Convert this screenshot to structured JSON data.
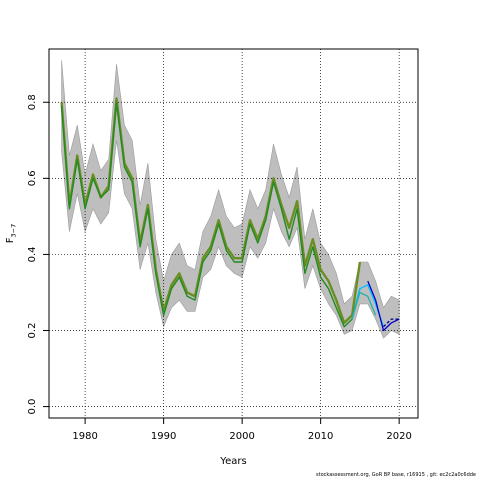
{
  "chart_data": {
    "type": "line",
    "xlabel": "Years",
    "ylabel_main": "F",
    "ylabel_sub": "3−7",
    "xlim": [
      1975.4,
      2022.4
    ],
    "ylim": [
      -0.03,
      0.94
    ],
    "xticks": [
      1980,
      1990,
      2000,
      2010,
      2020
    ],
    "yticks": [
      0.0,
      0.2,
      0.4,
      0.6,
      0.8
    ],
    "grid": true,
    "colors": {
      "band": "#bebebe",
      "base": "#6b8e23",
      "overlay": "#228b22",
      "retro1": "#00bfff",
      "retro2": "#20b2aa",
      "retro3": "#0000cd",
      "retro4": "#00008b"
    },
    "x": [
      1977,
      1978,
      1979,
      1980,
      1981,
      1982,
      1983,
      1984,
      1985,
      1986,
      1987,
      1988,
      1989,
      1990,
      1991,
      1992,
      1993,
      1994,
      1995,
      1996,
      1997,
      1998,
      1999,
      2000,
      2001,
      2002,
      2003,
      2004,
      2005,
      2006,
      2007,
      2008,
      2009,
      2010,
      2011,
      2012,
      2013,
      2014,
      2015,
      2016,
      2017,
      2018,
      2019,
      2020
    ],
    "band_upper": [
      0.91,
      0.66,
      0.74,
      0.61,
      0.69,
      0.62,
      0.65,
      0.9,
      0.74,
      0.7,
      0.53,
      0.64,
      0.44,
      0.33,
      0.4,
      0.43,
      0.37,
      0.36,
      0.46,
      0.5,
      0.57,
      0.5,
      0.47,
      0.48,
      0.57,
      0.52,
      0.57,
      0.69,
      0.61,
      0.55,
      0.63,
      0.44,
      0.52,
      0.43,
      0.4,
      0.35,
      0.27,
      0.29,
      0.38,
      0.38,
      0.33,
      0.26,
      0.29,
      0.28
    ],
    "band_lower": [
      0.67,
      0.46,
      0.56,
      0.46,
      0.52,
      0.48,
      0.51,
      0.7,
      0.56,
      0.52,
      0.36,
      0.43,
      0.3,
      0.21,
      0.26,
      0.28,
      0.25,
      0.25,
      0.34,
      0.36,
      0.42,
      0.37,
      0.35,
      0.34,
      0.42,
      0.39,
      0.43,
      0.52,
      0.46,
      0.42,
      0.47,
      0.31,
      0.37,
      0.31,
      0.27,
      0.24,
      0.19,
      0.2,
      0.27,
      0.27,
      0.23,
      0.18,
      0.2,
      0.19
    ],
    "series": [
      {
        "key": "base",
        "x": [
          1977,
          1978,
          1979,
          1980,
          1981,
          1982,
          1983,
          1984,
          1985,
          1986,
          1987,
          1988,
          1989,
          1990,
          1991,
          1992,
          1993,
          1994,
          1995,
          1996,
          1997,
          1998,
          1999,
          2000,
          2001,
          2002,
          2003,
          2004,
          2005,
          2006,
          2007,
          2008,
          2009,
          2010,
          2011,
          2012,
          2013,
          2014,
          2015
        ],
        "values": [
          0.8,
          0.53,
          0.66,
          0.53,
          0.61,
          0.55,
          0.58,
          0.81,
          0.64,
          0.6,
          0.43,
          0.53,
          0.36,
          0.25,
          0.32,
          0.35,
          0.3,
          0.29,
          0.39,
          0.42,
          0.49,
          0.42,
          0.39,
          0.39,
          0.49,
          0.44,
          0.5,
          0.6,
          0.53,
          0.47,
          0.54,
          0.37,
          0.44,
          0.36,
          0.33,
          0.28,
          0.22,
          0.24,
          0.38
        ]
      },
      {
        "key": "overlay",
        "x": [
          1977,
          1978,
          1979,
          1980,
          1981,
          1982,
          1983,
          1984,
          1985,
          1986,
          1987,
          1988,
          1989,
          1990,
          1991,
          1992,
          1993,
          1994,
          1995,
          1996,
          1997,
          1998,
          1999,
          2000,
          2001,
          2002,
          2003,
          2004,
          2005,
          2006,
          2007,
          2008,
          2009,
          2010,
          2011,
          2012,
          2013,
          2014,
          2015
        ],
        "values": [
          0.79,
          0.52,
          0.65,
          0.52,
          0.6,
          0.55,
          0.57,
          0.8,
          0.63,
          0.59,
          0.42,
          0.52,
          0.35,
          0.24,
          0.31,
          0.34,
          0.29,
          0.28,
          0.38,
          0.41,
          0.48,
          0.41,
          0.38,
          0.38,
          0.48,
          0.43,
          0.49,
          0.59,
          0.52,
          0.44,
          0.52,
          0.35,
          0.42,
          0.34,
          0.31,
          0.26,
          0.21,
          0.23,
          0.31
        ]
      },
      {
        "key": "retro1",
        "x": [
          2014,
          2015,
          2016,
          2017,
          2018
        ],
        "values": [
          0.23,
          0.31,
          0.32,
          0.27,
          0.21
        ]
      },
      {
        "key": "retro2",
        "x": [
          2014,
          2015,
          2016,
          2017
        ],
        "values": [
          0.23,
          0.3,
          0.29,
          0.24
        ]
      },
      {
        "key": "retro3",
        "x": [
          2016,
          2017,
          2018,
          2019,
          2020
        ],
        "values": [
          0.33,
          0.28,
          0.2,
          0.22,
          0.23
        ]
      },
      {
        "key": "retro4",
        "x": [
          2018,
          2019,
          2020
        ],
        "values": [
          0.21,
          0.23,
          0.23
        ],
        "dashed": true
      }
    ]
  },
  "footer": "stockassessment.org, GoR BP base, r16915 , git: ec2c2a0c6dde"
}
